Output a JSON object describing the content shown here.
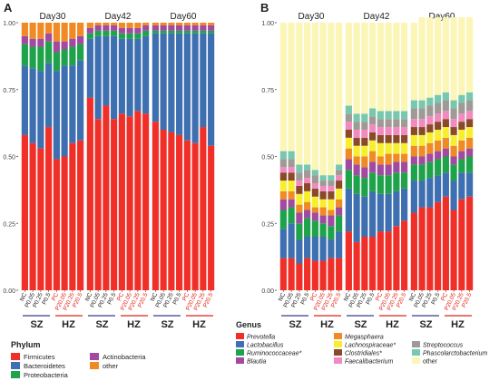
{
  "colors": {
    "Firmicutes": "#f03028",
    "Bacteroidetes": "#3e6fb0",
    "Proteobacteria": "#1ea34a",
    "Actinobacteria": "#a24aa0",
    "other": "#f08a24",
    "Prevotella": "#f03028",
    "Lactobacillus": "#3e6fb0",
    "Ruminococcaceae*": "#1ea34a",
    "Blautia": "#a24aa0",
    "Megasphaera": "#f08a24",
    "Lachnospiraceae*": "#f7ef2e",
    "Clostridiales*": "#8a4a2a",
    "Faecalibacterium": "#f28ac0",
    "Streptococcus": "#a09a96",
    "Phascolarctobacterium": "#78c8b0",
    "genus_other": "#fbf6b6",
    "red_label": "#e2231a",
    "group_line": "#3b3b8a"
  },
  "chart_data": [
    {
      "panel": "A",
      "type": "bar",
      "stacked": true,
      "ylim": [
        0,
        1
      ],
      "yticks": [
        "0.00",
        "0.25",
        "0.50",
        "0.75",
        "1.00"
      ],
      "facets": [
        {
          "title": "Day30",
          "categories": [
            "NC",
            "P0.05",
            "P0.25",
            "P0.5",
            "PC",
            "P20.05",
            "P20.25",
            "P20.5"
          ],
          "series": [
            {
              "name": "Firmicutes",
              "values": [
                0.58,
                0.55,
                0.53,
                0.61,
                0.49,
                0.5,
                0.55,
                0.56
              ]
            },
            {
              "name": "Bacteroidetes",
              "values": [
                0.26,
                0.28,
                0.29,
                0.24,
                0.33,
                0.34,
                0.29,
                0.3
              ]
            },
            {
              "name": "Proteobacteria",
              "values": [
                0.08,
                0.08,
                0.09,
                0.08,
                0.07,
                0.06,
                0.07,
                0.06
              ]
            },
            {
              "name": "Actinobacteria",
              "values": [
                0.03,
                0.03,
                0.03,
                0.03,
                0.04,
                0.03,
                0.03,
                0.03
              ]
            },
            {
              "name": "other",
              "values": [
                0.05,
                0.06,
                0.06,
                0.04,
                0.07,
                0.07,
                0.06,
                0.05
              ]
            }
          ]
        },
        {
          "title": "Day42",
          "categories": [
            "NC",
            "P0.05",
            "P0.25",
            "P0.5",
            "PC",
            "P20.05",
            "P20.25",
            "P20.5"
          ],
          "series": [
            {
              "name": "Firmicutes",
              "values": [
                0.72,
                0.64,
                0.69,
                0.64,
                0.66,
                0.65,
                0.67,
                0.66
              ]
            },
            {
              "name": "Bacteroidetes",
              "values": [
                0.22,
                0.31,
                0.26,
                0.31,
                0.28,
                0.29,
                0.27,
                0.29
              ]
            },
            {
              "name": "Proteobacteria",
              "values": [
                0.02,
                0.02,
                0.02,
                0.02,
                0.02,
                0.02,
                0.02,
                0.02
              ]
            },
            {
              "name": "Actinobacteria",
              "values": [
                0.02,
                0.02,
                0.02,
                0.02,
                0.02,
                0.02,
                0.02,
                0.02
              ]
            },
            {
              "name": "other",
              "values": [
                0.02,
                0.01,
                0.01,
                0.01,
                0.02,
                0.02,
                0.02,
                0.01
              ]
            }
          ]
        },
        {
          "title": "Day60",
          "categories": [
            "NC",
            "P0.05",
            "P0.25",
            "P0.5",
            "PC",
            "P20.05",
            "P20.25",
            "P20.5"
          ],
          "series": [
            {
              "name": "Firmicutes",
              "values": [
                0.63,
                0.6,
                0.59,
                0.58,
                0.56,
                0.55,
                0.61,
                0.54
              ]
            },
            {
              "name": "Bacteroidetes",
              "values": [
                0.33,
                0.36,
                0.37,
                0.38,
                0.4,
                0.41,
                0.35,
                0.42
              ]
            },
            {
              "name": "Proteobacteria",
              "values": [
                0.01,
                0.01,
                0.01,
                0.01,
                0.01,
                0.01,
                0.01,
                0.01
              ]
            },
            {
              "name": "Actinobacteria",
              "values": [
                0.02,
                0.02,
                0.02,
                0.02,
                0.02,
                0.02,
                0.02,
                0.02
              ]
            },
            {
              "name": "other",
              "values": [
                0.01,
                0.01,
                0.01,
                0.01,
                0.01,
                0.01,
                0.01,
                0.01
              ]
            }
          ]
        }
      ],
      "x_group_labels": [
        "SZ",
        "HZ"
      ],
      "legend_title": "Phylum",
      "legend": [
        "Firmicutes",
        "Bacteroidetes",
        "Proteobacteria",
        "Actinobacteria",
        "other"
      ]
    },
    {
      "panel": "B",
      "type": "bar",
      "stacked": true,
      "ylim": [
        0,
        1
      ],
      "yticks": [
        "0.00",
        "0.25",
        "0.50",
        "0.75",
        "1.00"
      ],
      "facets": [
        {
          "title": "Day30",
          "categories": [
            "NC",
            "P0.05",
            "P0.25",
            "P0.5",
            "PC",
            "P20.05",
            "P20.25",
            "P20.5"
          ],
          "series": [
            {
              "name": "Prevotella",
              "values": [
                0.12,
                0.12,
                0.1,
                0.12,
                0.11,
                0.11,
                0.12,
                0.12
              ]
            },
            {
              "name": "Lactobacillus",
              "values": [
                0.11,
                0.13,
                0.09,
                0.08,
                0.09,
                0.09,
                0.07,
                0.1
              ]
            },
            {
              "name": "Ruminococcaceae*",
              "values": [
                0.07,
                0.06,
                0.06,
                0.07,
                0.06,
                0.05,
                0.05,
                0.06
              ]
            },
            {
              "name": "Blautia",
              "values": [
                0.04,
                0.03,
                0.04,
                0.03,
                0.03,
                0.03,
                0.04,
                0.03
              ]
            },
            {
              "name": "Megasphaera",
              "values": [
                0.03,
                0.03,
                0.03,
                0.03,
                0.02,
                0.03,
                0.02,
                0.03
              ]
            },
            {
              "name": "Lachnospiraceae*",
              "values": [
                0.04,
                0.04,
                0.04,
                0.04,
                0.04,
                0.03,
                0.04,
                0.04
              ]
            },
            {
              "name": "Clostridiales*",
              "values": [
                0.03,
                0.03,
                0.03,
                0.03,
                0.03,
                0.03,
                0.03,
                0.03
              ]
            },
            {
              "name": "Faecalibacterium",
              "values": [
                0.02,
                0.02,
                0.02,
                0.02,
                0.02,
                0.02,
                0.02,
                0.02
              ]
            },
            {
              "name": "Streptococcus",
              "values": [
                0.03,
                0.03,
                0.03,
                0.03,
                0.03,
                0.02,
                0.02,
                0.02
              ]
            },
            {
              "name": "Phascolarctobacterium",
              "values": [
                0.03,
                0.03,
                0.03,
                0.02,
                0.02,
                0.02,
                0.02,
                0.02
              ]
            },
            {
              "name": "other",
              "values": [
                0.48,
                0.48,
                0.53,
                0.53,
                0.55,
                0.57,
                0.57,
                0.53
              ]
            }
          ]
        },
        {
          "title": "Day42",
          "categories": [
            "NC",
            "P0.05",
            "P0.25",
            "P0.5",
            "PC",
            "P20.05",
            "P20.25",
            "P20.5"
          ],
          "series": [
            {
              "name": "Prevotella",
              "values": [
                0.22,
                0.18,
                0.2,
                0.2,
                0.22,
                0.22,
                0.24,
                0.26
              ]
            },
            {
              "name": "Lactobacillus",
              "values": [
                0.16,
                0.18,
                0.15,
                0.17,
                0.14,
                0.14,
                0.13,
                0.12
              ]
            },
            {
              "name": "Ruminococcaceae*",
              "values": [
                0.07,
                0.07,
                0.07,
                0.07,
                0.07,
                0.07,
                0.07,
                0.06
              ]
            },
            {
              "name": "Blautia",
              "values": [
                0.04,
                0.04,
                0.04,
                0.04,
                0.04,
                0.04,
                0.04,
                0.04
              ]
            },
            {
              "name": "Megasphaera",
              "values": [
                0.04,
                0.03,
                0.04,
                0.04,
                0.03,
                0.04,
                0.03,
                0.03
              ]
            },
            {
              "name": "Lachnospiraceae*",
              "values": [
                0.04,
                0.04,
                0.04,
                0.04,
                0.05,
                0.04,
                0.04,
                0.04
              ]
            },
            {
              "name": "Clostridiales*",
              "values": [
                0.03,
                0.03,
                0.03,
                0.03,
                0.03,
                0.03,
                0.03,
                0.03
              ]
            },
            {
              "name": "Faecalibacterium",
              "values": [
                0.03,
                0.03,
                0.03,
                0.03,
                0.03,
                0.03,
                0.03,
                0.03
              ]
            },
            {
              "name": "Streptococcus",
              "values": [
                0.03,
                0.03,
                0.03,
                0.03,
                0.03,
                0.03,
                0.03,
                0.03
              ]
            },
            {
              "name": "Phascolarctobacterium",
              "values": [
                0.03,
                0.03,
                0.03,
                0.03,
                0.03,
                0.03,
                0.03,
                0.03
              ]
            },
            {
              "name": "other",
              "values": [
                0.31,
                0.34,
                0.34,
                0.32,
                0.33,
                0.33,
                0.33,
                0.33
              ]
            }
          ]
        },
        {
          "title": "Day60",
          "categories": [
            "NC",
            "P0.05",
            "P0.25",
            "P0.5",
            "PC",
            "P20.05",
            "P20.25",
            "P20.5"
          ],
          "series": [
            {
              "name": "Prevotella",
              "values": [
                0.29,
                0.31,
                0.31,
                0.33,
                0.35,
                0.3,
                0.34,
                0.35
              ]
            },
            {
              "name": "Lactobacillus",
              "values": [
                0.12,
                0.1,
                0.11,
                0.1,
                0.09,
                0.11,
                0.1,
                0.09
              ]
            },
            {
              "name": "Ruminococcaceae*",
              "values": [
                0.06,
                0.06,
                0.06,
                0.06,
                0.06,
                0.06,
                0.05,
                0.06
              ]
            },
            {
              "name": "Blautia",
              "values": [
                0.03,
                0.03,
                0.03,
                0.03,
                0.03,
                0.03,
                0.03,
                0.03
              ]
            },
            {
              "name": "Megasphaera",
              "values": [
                0.04,
                0.04,
                0.04,
                0.04,
                0.04,
                0.04,
                0.04,
                0.04
              ]
            },
            {
              "name": "Lachnospiraceae*",
              "values": [
                0.04,
                0.04,
                0.04,
                0.04,
                0.04,
                0.04,
                0.04,
                0.04
              ]
            },
            {
              "name": "Clostridiales*",
              "values": [
                0.03,
                0.03,
                0.03,
                0.03,
                0.03,
                0.03,
                0.03,
                0.03
              ]
            },
            {
              "name": "Faecalibacterium",
              "values": [
                0.03,
                0.03,
                0.03,
                0.03,
                0.03,
                0.03,
                0.03,
                0.03
              ]
            },
            {
              "name": "Streptococcus",
              "values": [
                0.04,
                0.04,
                0.04,
                0.04,
                0.04,
                0.04,
                0.04,
                0.04
              ]
            },
            {
              "name": "Phascolarctobacterium",
              "values": [
                0.03,
                0.03,
                0.03,
                0.03,
                0.03,
                0.03,
                0.03,
                0.03
              ]
            },
            {
              "name": "other",
              "values": [
                0.29,
                0.31,
                0.3,
                0.29,
                0.28,
                0.31,
                0.29,
                0.28
              ]
            }
          ]
        }
      ],
      "x_group_labels": [
        "SZ",
        "HZ"
      ],
      "legend_title": "Genus",
      "legend": [
        "Prevotella",
        "Lactobacillus",
        "Ruminococcaceae*",
        "Blautia",
        "Megasphaera",
        "Lachnospiraceae*",
        "Clostridiales*",
        "Faecalibacterium",
        "Streptococcus",
        "Phascolarctobacterium",
        "other"
      ]
    }
  ]
}
